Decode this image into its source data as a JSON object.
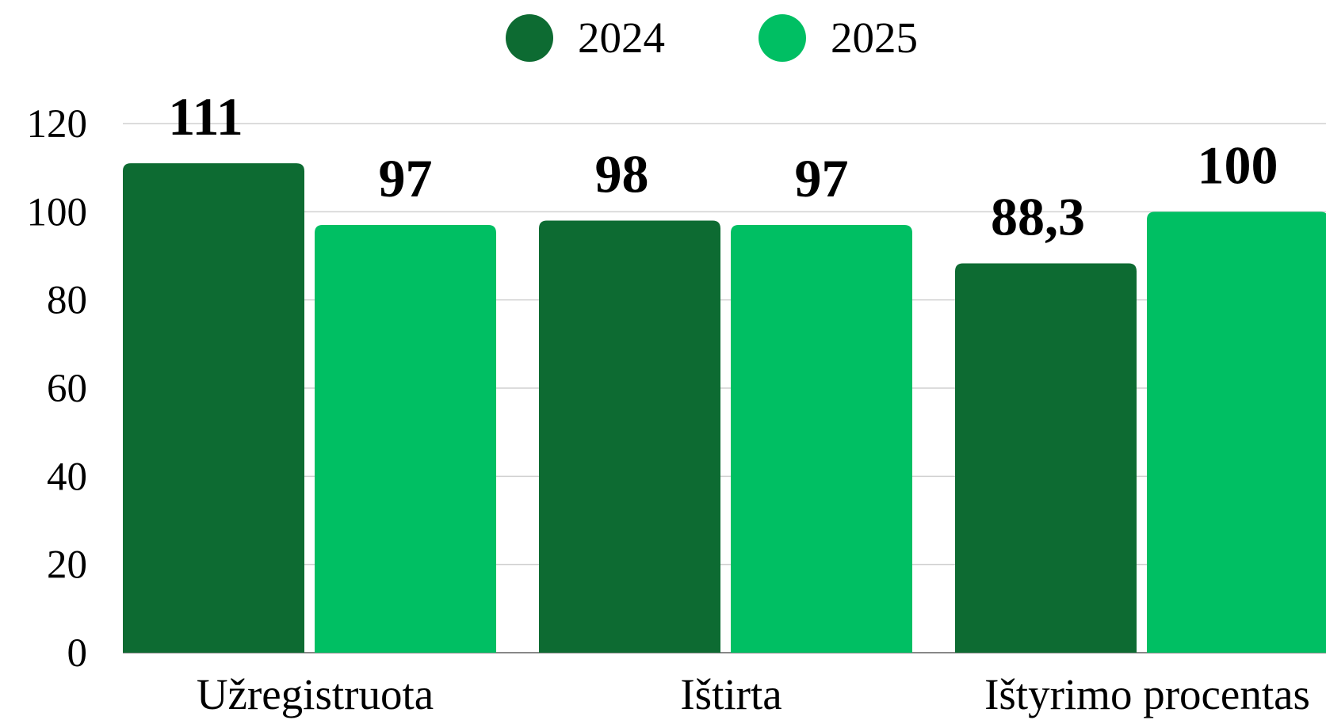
{
  "chart_data": {
    "type": "bar",
    "categories": [
      "Užregistruota",
      "Ištirta",
      "Ištyrimo procentas"
    ],
    "series": [
      {
        "name": "2024",
        "color": "#0d6b32",
        "values": [
          111,
          98,
          88.3
        ],
        "value_labels": [
          "111",
          "98",
          "88,3"
        ]
      },
      {
        "name": "2025",
        "color": "#00bf63",
        "values": [
          97,
          97,
          100
        ]
      }
    ],
    "ylim": [
      0,
      120
    ],
    "yticks": [
      0,
      20,
      40,
      60,
      80,
      100,
      120
    ],
    "grid": true,
    "legend": "top"
  }
}
